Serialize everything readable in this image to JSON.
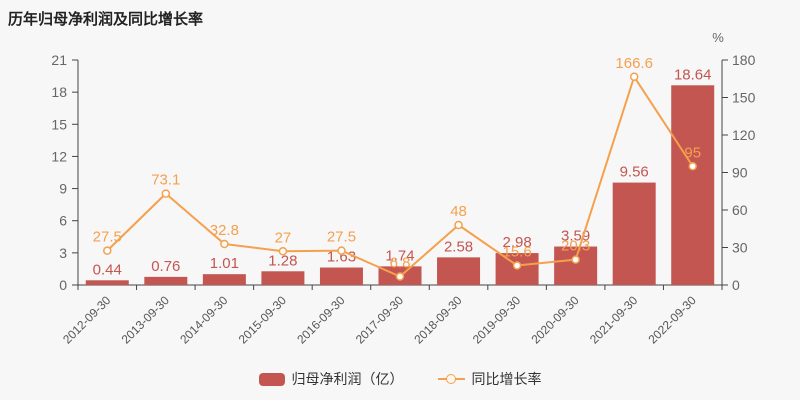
{
  "title": "历年归母净利润及同比增长率",
  "colors": {
    "bar": "#c35651",
    "line": "#f5a04d",
    "axis_line": "#444444",
    "tick_text": "#666666",
    "date_text": "#555555",
    "background": "#f7f7f7",
    "title_text": "#222222"
  },
  "legend": {
    "items": [
      {
        "label": "归母净利润（亿）",
        "series": "bar"
      },
      {
        "label": "同比增长率",
        "series": "line"
      }
    ]
  },
  "chart_data": {
    "type": "bar+line",
    "categories": [
      "2012-09-30",
      "2013-09-30",
      "2014-09-30",
      "2015-09-30",
      "2016-09-30",
      "2017-09-30",
      "2018-09-30",
      "2019-09-30",
      "2020-09-30",
      "2021-09-30",
      "2022-09-30"
    ],
    "series": [
      {
        "name": "归母净利润（亿）",
        "type": "bar",
        "y_axis": "left",
        "values": [
          0.44,
          0.76,
          1.01,
          1.28,
          1.63,
          1.74,
          2.58,
          2.98,
          3.59,
          9.56,
          18.64
        ]
      },
      {
        "name": "同比增长率",
        "type": "line",
        "y_axis": "right",
        "values": [
          27.5,
          73.1,
          32.8,
          27,
          27.5,
          6.8,
          48,
          15.6,
          20.3,
          166.6,
          95
        ]
      }
    ],
    "left_axis": {
      "min": 0,
      "max": 21,
      "tick_step": 3
    },
    "right_axis": {
      "min": 0,
      "max": 180,
      "tick_step": 30,
      "unit": "%"
    },
    "grid": false,
    "legend_position": "bottom",
    "value_labels": true
  }
}
